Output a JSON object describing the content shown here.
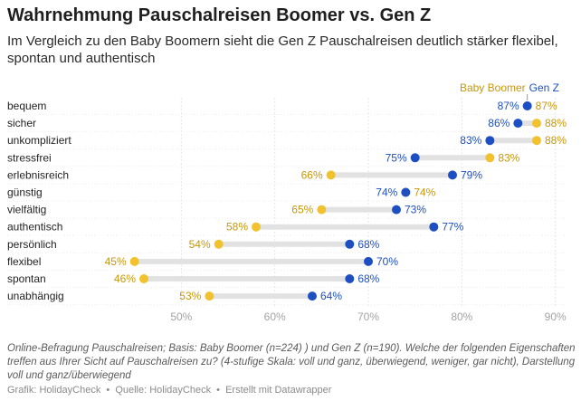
{
  "header": {
    "title": "Wahrnehmung Pauschalreisen Boomer vs. Gen Z",
    "subtitle": "Im Vergleich zu den Baby Boomern sieht die Gen Z Pauschalreisen deutlich stärker flexibel, spontan und authentisch"
  },
  "footer": {
    "notes": "Online-Befragung Pauschalreisen; Basis: Baby Boomer (n=224) ) und Gen Z (n=190). Welche der folgenden Eigenschaften treffen aus Ihrer Sicht auf Pauschalreisen zu? (4-stufige Skala: voll und ganz, überwiegend, weniger, gar nicht), Darstellung voll und ganz/überwiegend",
    "credit_graphic": "Grafik: HolidayCheck",
    "credit_source": "Quelle: HolidayCheck",
    "credit_tool": "Erstellt mit Datawrapper",
    "separator": "•"
  },
  "chart_data": {
    "type": "dot-range",
    "title": "Wahrnehmung Pauschalreisen Boomer vs. Gen Z",
    "xlim": [
      43,
      91
    ],
    "x_ticks": [
      50,
      60,
      70,
      80,
      90
    ],
    "x_tick_labels": [
      "50%",
      "60%",
      "70%",
      "80%",
      "90%"
    ],
    "value_suffix": "%",
    "grid": "vertical",
    "legend_placement": "top-right",
    "categories": [
      "bequem",
      "sicher",
      "unkompliziert",
      "stressfrei",
      "erlebnisreich",
      "günstig",
      "vielfältig",
      "authentisch",
      "persönlich",
      "flexibel",
      "spontan",
      "unabhängig"
    ],
    "series": [
      {
        "name": "Baby Boomer",
        "color": "#f2c12e",
        "label_color": "#c8960a",
        "values": [
          87,
          88,
          88,
          83,
          66,
          74,
          65,
          58,
          54,
          45,
          46,
          53
        ]
      },
      {
        "name": "Gen Z",
        "color": "#1e4fc2",
        "label_color": "#1e4fc2",
        "values": [
          87,
          86,
          83,
          75,
          79,
          74,
          73,
          77,
          68,
          70,
          68,
          64
        ]
      }
    ],
    "connector_color": "#e2e2e2"
  }
}
